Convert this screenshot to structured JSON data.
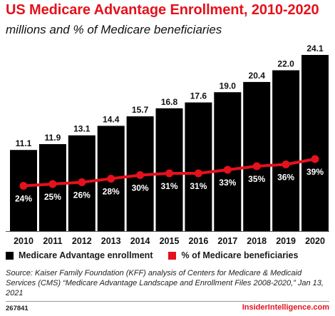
{
  "title": "US Medicare Advantage Enrollment, 2010-2020",
  "subtitle": "millions and % of Medicare beneficiaries",
  "colors": {
    "accent": "#e5111c",
    "bars": "#000000"
  },
  "legend": {
    "enrollment": "Medicare Advantage enrollment",
    "percent": "% of Medicare beneficiaries"
  },
  "source": "Source: Kaiser Family Foundation (KFF) analysis of Centers for Medicare & Medicaid Services  (CMS) “Medicare Advantage Landscape and Enrollment Files 2008-2020,” Jan 13, 2021",
  "footer": {
    "chart_id": "267841",
    "brand": "InsiderIntelligence.com"
  },
  "chart_data": {
    "type": "bar",
    "categories": [
      "2010",
      "2011",
      "2012",
      "2013",
      "2014",
      "2015",
      "2016",
      "2017",
      "2018",
      "2019",
      "2020"
    ],
    "series": [
      {
        "name": "Medicare Advantage enrollment",
        "type": "bar",
        "values": [
          11.1,
          11.9,
          13.1,
          14.4,
          15.7,
          16.8,
          17.6,
          19.0,
          20.4,
          22.0,
          24.1
        ],
        "labels": [
          "11.1",
          "11.9",
          "13.1",
          "14.4",
          "15.7",
          "16.8",
          "17.6",
          "19.0",
          "20.4",
          "22.0",
          "24.1"
        ]
      },
      {
        "name": "% of Medicare beneficiaries",
        "type": "line",
        "values": [
          24,
          25,
          26,
          28,
          30,
          31,
          31,
          33,
          35,
          36,
          39
        ],
        "labels": [
          "24%",
          "25%",
          "26%",
          "28%",
          "30%",
          "31%",
          "31%",
          "33%",
          "35%",
          "36%",
          "39%"
        ]
      }
    ],
    "legend_position": "bottom-left",
    "grid": false
  }
}
